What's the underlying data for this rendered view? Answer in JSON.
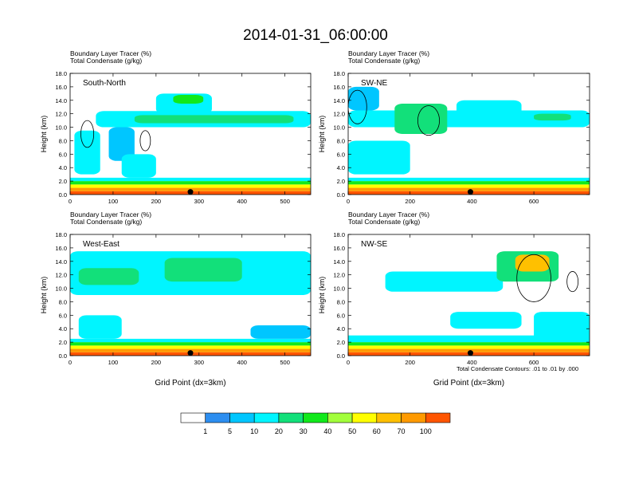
{
  "title": "2014-01-31_06:00:00",
  "panel_subtitle_tracer": "Boundary Layer Tracer",
  "panel_subtitle_tracer_unit": "(%)",
  "panel_subtitle_condensate": "Total Condensate",
  "panel_subtitle_condensate_unit": "(g/kg)",
  "footnote": "Total Condensate Contours: .01 to .01 by .000",
  "chart_data": [
    {
      "type": "heatmap",
      "panel": "South-North",
      "ylabel": "Height (km)",
      "xlabel": "",
      "xlim": [
        0,
        560
      ],
      "ylim": [
        0,
        18
      ],
      "xticks": [
        0,
        100,
        200,
        300,
        400,
        500
      ],
      "yticks": [
        "0.0",
        "2.0",
        "4.0",
        "6.0",
        "8.0",
        "10.0",
        "12.0",
        "14.0",
        "16.0",
        "18.0"
      ],
      "marker_x": 280,
      "layers": [
        {
          "x": [
            0,
            560
          ],
          "y": [
            0,
            0.5
          ],
          "level": 10
        },
        {
          "x": [
            0,
            560
          ],
          "y": [
            0.5,
            1.0
          ],
          "level": 9
        },
        {
          "x": [
            0,
            560
          ],
          "y": [
            1.0,
            1.5
          ],
          "level": 7
        },
        {
          "x": [
            0,
            560
          ],
          "y": [
            1.5,
            2.0
          ],
          "level": 5
        },
        {
          "x": [
            0,
            560
          ],
          "y": [
            2.0,
            2.5
          ],
          "level": 3
        },
        {
          "x": [
            60,
            560
          ],
          "y": [
            10.0,
            12.4
          ],
          "level": 3
        },
        {
          "x": [
            150,
            520
          ],
          "y": [
            10.6,
            11.8
          ],
          "level": 4
        },
        {
          "x": [
            200,
            330
          ],
          "y": [
            12.0,
            15.0
          ],
          "level": 3
        },
        {
          "x": [
            240,
            310
          ],
          "y": [
            13.5,
            14.8
          ],
          "level": 5
        },
        {
          "x": [
            10,
            70
          ],
          "y": [
            3.0,
            9.5
          ],
          "level": 3
        },
        {
          "x": [
            90,
            150
          ],
          "y": [
            5.0,
            10.0
          ],
          "level": 2
        },
        {
          "x": [
            120,
            200
          ],
          "y": [
            2.5,
            6.0
          ],
          "level": 3
        }
      ],
      "contours": [
        {
          "cx": 40,
          "cy": 9.0,
          "rx": 15,
          "ry": 2.0
        },
        {
          "cx": 175,
          "cy": 8.0,
          "rx": 12,
          "ry": 1.5
        }
      ]
    },
    {
      "type": "heatmap",
      "panel": "SW-NE",
      "ylabel": "Height (km)",
      "xlabel": "",
      "xlim": [
        0,
        780
      ],
      "ylim": [
        0,
        18
      ],
      "xticks": [
        0,
        200,
        400,
        600
      ],
      "yticks": [
        "0.0",
        "2.0",
        "4.0",
        "6.0",
        "8.0",
        "10.0",
        "12.0",
        "14.0",
        "16.0",
        "18.0"
      ],
      "marker_x": 395,
      "layers": [
        {
          "x": [
            0,
            780
          ],
          "y": [
            0,
            0.5
          ],
          "level": 10
        },
        {
          "x": [
            0,
            780
          ],
          "y": [
            0.5,
            1.0
          ],
          "level": 9
        },
        {
          "x": [
            0,
            780
          ],
          "y": [
            1.0,
            1.5
          ],
          "level": 7
        },
        {
          "x": [
            0,
            780
          ],
          "y": [
            1.5,
            2.0
          ],
          "level": 5
        },
        {
          "x": [
            0,
            780
          ],
          "y": [
            2.0,
            2.5
          ],
          "level": 3
        },
        {
          "x": [
            0,
            780
          ],
          "y": [
            10.0,
            12.5
          ],
          "level": 3
        },
        {
          "x": [
            0,
            100
          ],
          "y": [
            12.5,
            16.0
          ],
          "level": 2
        },
        {
          "x": [
            150,
            320
          ],
          "y": [
            9.0,
            13.5
          ],
          "level": 4
        },
        {
          "x": [
            350,
            560
          ],
          "y": [
            10.5,
            14.0
          ],
          "level": 3
        },
        {
          "x": [
            0,
            200
          ],
          "y": [
            3.0,
            8.0
          ],
          "level": 3
        },
        {
          "x": [
            600,
            720
          ],
          "y": [
            11.0,
            12.0
          ],
          "level": 4
        }
      ],
      "contours": [
        {
          "cx": 30,
          "cy": 13.0,
          "rx": 30,
          "ry": 2.5
        },
        {
          "cx": 260,
          "cy": 11.0,
          "rx": 35,
          "ry": 2.2
        }
      ]
    },
    {
      "type": "heatmap",
      "panel": "West-East",
      "ylabel": "Height (km)",
      "xlabel": "Grid Point (dx=3km)",
      "xlim": [
        0,
        560
      ],
      "ylim": [
        0,
        18
      ],
      "xticks": [
        0,
        100,
        200,
        300,
        400,
        500
      ],
      "yticks": [
        "0.0",
        "2.0",
        "4.0",
        "6.0",
        "8.0",
        "10.0",
        "12.0",
        "14.0",
        "16.0",
        "18.0"
      ],
      "marker_x": 280,
      "layers": [
        {
          "x": [
            0,
            560
          ],
          "y": [
            0,
            0.5
          ],
          "level": 10
        },
        {
          "x": [
            0,
            560
          ],
          "y": [
            0.5,
            1.0
          ],
          "level": 9
        },
        {
          "x": [
            0,
            560
          ],
          "y": [
            1.0,
            1.5
          ],
          "level": 7
        },
        {
          "x": [
            0,
            560
          ],
          "y": [
            1.5,
            2.0
          ],
          "level": 5
        },
        {
          "x": [
            0,
            560
          ],
          "y": [
            2.0,
            2.5
          ],
          "level": 3
        },
        {
          "x": [
            0,
            560
          ],
          "y": [
            9.0,
            15.5
          ],
          "level": 3
        },
        {
          "x": [
            20,
            160
          ],
          "y": [
            10.5,
            13.0
          ],
          "level": 4
        },
        {
          "x": [
            220,
            400
          ],
          "y": [
            11.0,
            14.5
          ],
          "level": 4
        },
        {
          "x": [
            20,
            120
          ],
          "y": [
            2.5,
            6.0
          ],
          "level": 3
        },
        {
          "x": [
            420,
            560
          ],
          "y": [
            2.5,
            4.5
          ],
          "level": 2
        }
      ],
      "contours": []
    },
    {
      "type": "heatmap",
      "panel": "NW-SE",
      "ylabel": "Height (km)",
      "xlabel": "Grid Point (dx=3km)",
      "xlim": [
        0,
        780
      ],
      "ylim": [
        0,
        18
      ],
      "xticks": [
        0,
        200,
        400,
        600
      ],
      "yticks": [
        "0.0",
        "2.0",
        "4.0",
        "6.0",
        "8.0",
        "10.0",
        "12.0",
        "14.0",
        "16.0",
        "18.0"
      ],
      "marker_x": 395,
      "layers": [
        {
          "x": [
            0,
            780
          ],
          "y": [
            0,
            0.5
          ],
          "level": 10
        },
        {
          "x": [
            0,
            780
          ],
          "y": [
            0.5,
            1.0
          ],
          "level": 9
        },
        {
          "x": [
            0,
            780
          ],
          "y": [
            1.0,
            1.5
          ],
          "level": 7
        },
        {
          "x": [
            0,
            780
          ],
          "y": [
            1.5,
            2.0
          ],
          "level": 5
        },
        {
          "x": [
            0,
            780
          ],
          "y": [
            2.0,
            3.0
          ],
          "level": 3
        },
        {
          "x": [
            120,
            500
          ],
          "y": [
            9.5,
            12.5
          ],
          "level": 3
        },
        {
          "x": [
            480,
            680
          ],
          "y": [
            11.0,
            15.5
          ],
          "level": 4
        },
        {
          "x": [
            540,
            650
          ],
          "y": [
            12.5,
            15.0
          ],
          "level": 8
        },
        {
          "x": [
            330,
            560
          ],
          "y": [
            4.0,
            6.5
          ],
          "level": 3
        },
        {
          "x": [
            600,
            780
          ],
          "y": [
            2.0,
            6.5
          ],
          "level": 3
        }
      ],
      "contours": [
        {
          "cx": 600,
          "cy": 11.5,
          "rx": 55,
          "ry": 3.5
        },
        {
          "cx": 725,
          "cy": 11.0,
          "rx": 18,
          "ry": 1.5
        }
      ]
    }
  ],
  "colorbar": {
    "labels": [
      "1",
      "5",
      "10",
      "20",
      "30",
      "40",
      "50",
      "60",
      "70",
      "100"
    ],
    "colors": [
      "#ffffff",
      "#2d8ef0",
      "#00c6ff",
      "#00f5ff",
      "#12e07a",
      "#11e91b",
      "#a2ff3c",
      "#ffff00",
      "#ffc000",
      "#ff9a00",
      "#ff5500",
      "#ff0000"
    ]
  }
}
